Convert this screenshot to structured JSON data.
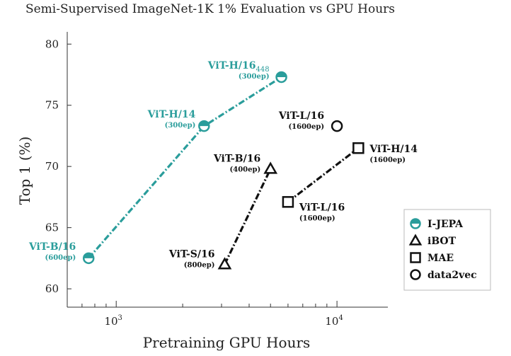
{
  "chart_data": {
    "type": "line",
    "title": "Semi-Supervised ImageNet-1K 1% Evaluation vs GPU Hours",
    "xlabel": "Pretraining GPU Hours",
    "ylabel": "Top 1 (%)",
    "xscale": "log",
    "xlim": [
      600,
      17000
    ],
    "ylim": [
      58.5,
      81
    ],
    "y_ticks": [
      60,
      65,
      70,
      75,
      80
    ],
    "x_tick_labels": [
      {
        "value": 1000,
        "base": "10",
        "exp": "3"
      },
      {
        "value": 10000,
        "base": "10",
        "exp": "4"
      }
    ],
    "legend_position": "lower-right",
    "series": [
      {
        "name": "I-JEPA",
        "color": "#2a9d9b",
        "marker": "half-circle",
        "connected": true,
        "points": [
          {
            "x": 750,
            "y": 62.5,
            "label": "ViT-B/16",
            "ep": "(600ep)"
          },
          {
            "x": 2500,
            "y": 73.3,
            "label": "ViT-H/14",
            "ep": "(300ep)"
          },
          {
            "x": 5600,
            "y": 77.3,
            "label": "ViT-H/16",
            "label_sub": "448",
            "ep": "(300ep)"
          }
        ]
      },
      {
        "name": "iBOT",
        "color": "#111111",
        "marker": "triangle",
        "connected": true,
        "points": [
          {
            "x": 3100,
            "y": 62.0,
            "label": "ViT-S/16",
            "ep": "(800ep)"
          },
          {
            "x": 5000,
            "y": 69.8,
            "label": "ViT-B/16",
            "ep": "(400ep)"
          }
        ]
      },
      {
        "name": "MAE",
        "color": "#111111",
        "marker": "square",
        "connected": true,
        "points": [
          {
            "x": 6000,
            "y": 67.1,
            "label": "ViT-L/16",
            "ep": "(1600ep)"
          },
          {
            "x": 12500,
            "y": 71.5,
            "label": "ViT-H/14",
            "ep": "(1600ep)"
          }
        ]
      },
      {
        "name": "data2vec",
        "color": "#111111",
        "marker": "circle",
        "connected": false,
        "points": [
          {
            "x": 10000,
            "y": 73.3,
            "label": "ViT-L/16",
            "ep": "(1600ep)"
          }
        ]
      }
    ]
  }
}
